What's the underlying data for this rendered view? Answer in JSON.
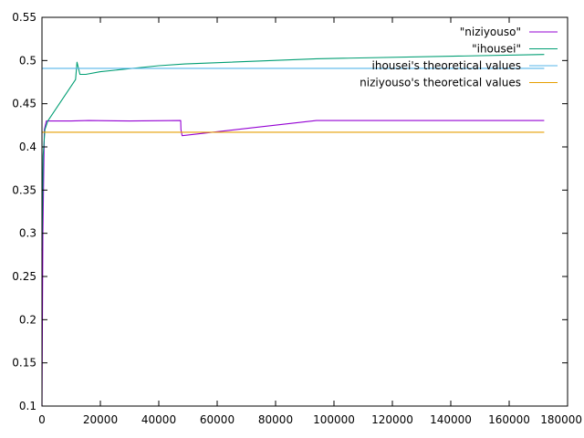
{
  "chart_data": {
    "type": "line",
    "title": "",
    "xlabel": "",
    "ylabel": "",
    "xlim": [
      0,
      180000
    ],
    "ylim": [
      0.1,
      0.55
    ],
    "x_ticks": [
      0,
      20000,
      40000,
      60000,
      80000,
      100000,
      120000,
      140000,
      160000,
      180000
    ],
    "y_ticks": [
      0.1,
      0.15,
      0.2,
      0.25,
      0.3,
      0.35,
      0.4,
      0.45,
      0.5,
      0.55
    ],
    "x_tick_labels": [
      "0",
      "20000",
      "40000",
      "60000",
      "80000",
      "100000",
      "120000",
      "140000",
      "160000",
      "180000"
    ],
    "y_tick_labels": [
      "0.1",
      "0.15",
      "0.2",
      "0.25",
      "0.3",
      "0.35",
      "0.4",
      "0.45",
      "0.5",
      "0.55"
    ],
    "grid": false,
    "legend_position": "top-right",
    "series": [
      {
        "name": "\"niziyouso\"",
        "color": "#9400d3",
        "x": [
          0,
          300,
          800,
          1500,
          3000,
          10000,
          16000,
          30000,
          47500,
          47600,
          48000,
          94000,
          172000
        ],
        "y": [
          0.1,
          0.3,
          0.42,
          0.43,
          0.43,
          0.43,
          0.4305,
          0.43,
          0.4305,
          0.42,
          0.413,
          0.4305,
          0.4305
        ]
      },
      {
        "name": "\"ihousei\"",
        "color": "#009e73",
        "x": [
          0,
          400,
          1000,
          2000,
          11500,
          12000,
          13000,
          15000,
          20000,
          40000,
          49000,
          94000,
          172000
        ],
        "y": [
          0.28,
          0.39,
          0.42,
          0.43,
          0.478,
          0.498,
          0.484,
          0.484,
          0.487,
          0.494,
          0.496,
          0.502,
          0.507
        ]
      },
      {
        "name": "ihousei's theoretical values",
        "color": "#56b4e9",
        "x": [
          0,
          172000
        ],
        "y": [
          0.491,
          0.491
        ]
      },
      {
        "name": "niziyouso's theoretical values",
        "color": "#e69f00",
        "x": [
          0,
          172000
        ],
        "y": [
          0.417,
          0.417
        ]
      }
    ]
  }
}
